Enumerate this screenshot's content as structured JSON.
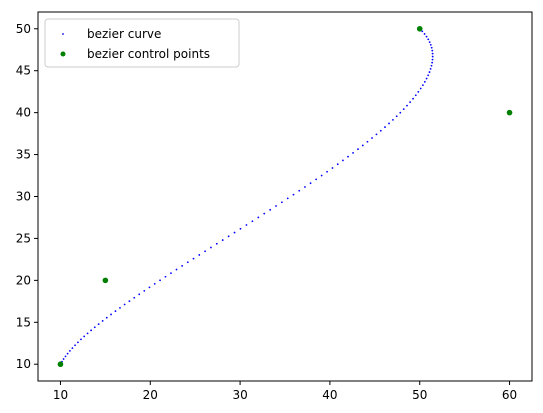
{
  "chart_data": {
    "type": "scatter",
    "title": "",
    "xlabel": "",
    "ylabel": "",
    "xlim": [
      7.5,
      62.5
    ],
    "ylim": [
      8.0,
      52.0
    ],
    "xticks": [
      10,
      20,
      30,
      40,
      50,
      60
    ],
    "yticks": [
      10,
      15,
      20,
      25,
      30,
      35,
      40,
      45,
      50
    ],
    "grid": false,
    "legend_position": "upper-left",
    "series": [
      {
        "name": "bezier curve",
        "kind": "curve-samples",
        "color": "#0000ff",
        "control_points": [
          [
            10,
            10
          ],
          [
            15,
            20
          ],
          [
            60,
            40
          ],
          [
            50,
            50
          ]
        ],
        "samples": 100
      },
      {
        "name": "bezier control points",
        "kind": "points",
        "color": "#008000",
        "points": [
          [
            10,
            10
          ],
          [
            15,
            20
          ],
          [
            60,
            40
          ],
          [
            50,
            50
          ]
        ]
      }
    ]
  }
}
